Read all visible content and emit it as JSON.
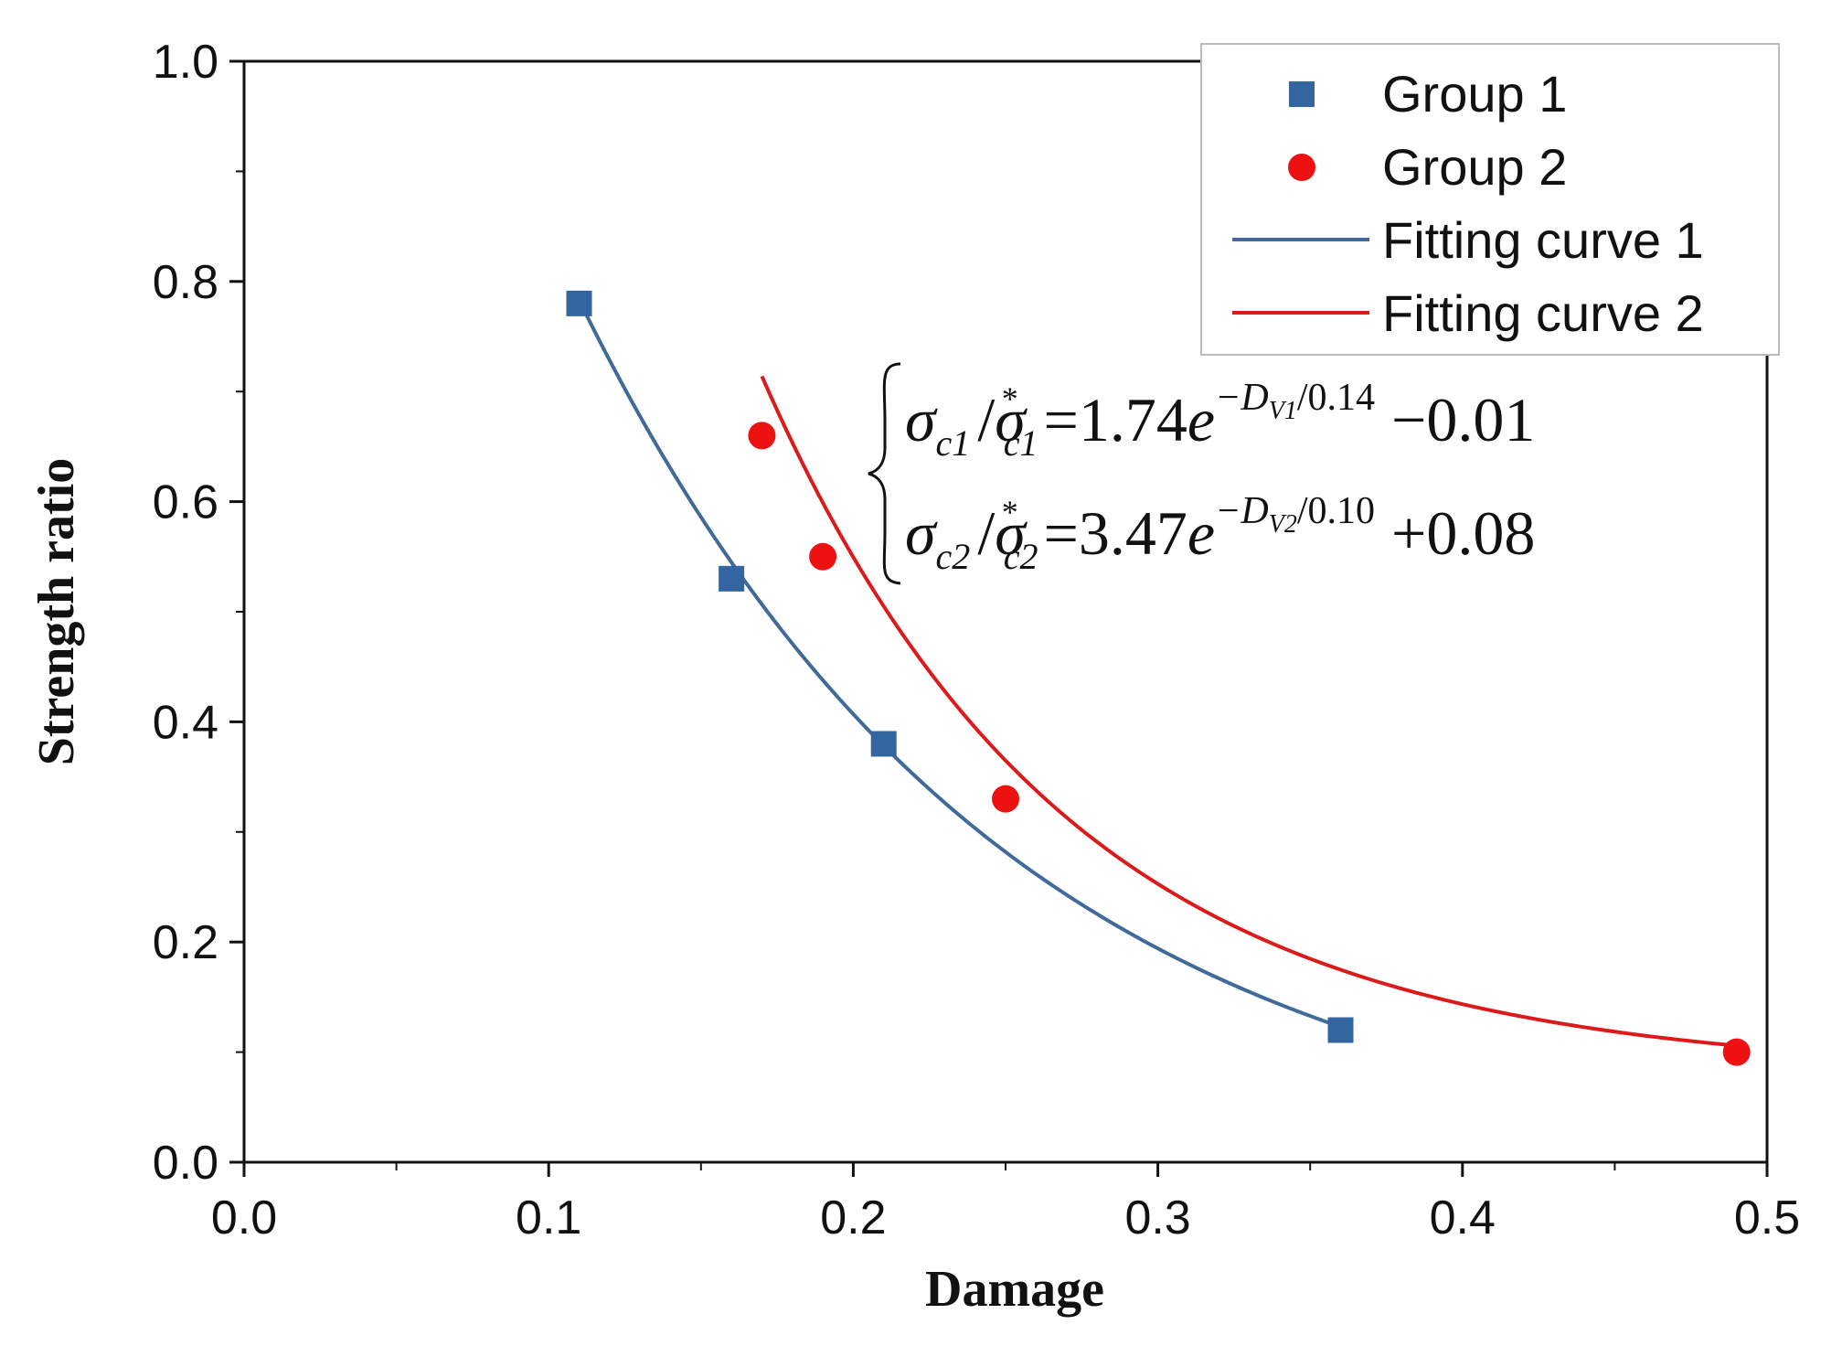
{
  "chart_data": {
    "type": "scatter",
    "title": "",
    "xlabel": "Damage",
    "ylabel": "Strength ratio",
    "xlim": [
      0.0,
      0.5
    ],
    "ylim": [
      0.0,
      1.0
    ],
    "x_ticks": [
      0.0,
      0.1,
      0.2,
      0.3,
      0.4,
      0.5
    ],
    "x_tick_labels": [
      "0.0",
      "0.1",
      "0.2",
      "0.3",
      "0.4",
      "0.5"
    ],
    "y_ticks": [
      0.0,
      0.2,
      0.4,
      0.6,
      0.8,
      1.0
    ],
    "y_tick_labels": [
      "0.0",
      "0.2",
      "0.4",
      "0.6",
      "0.8",
      "1.0"
    ],
    "grid": false,
    "legend_position": "top-right",
    "series": [
      {
        "name": "Group 1",
        "kind": "scatter",
        "marker": "square",
        "color": "#3366a0",
        "x": [
          0.11,
          0.16,
          0.21,
          0.36
        ],
        "y": [
          0.78,
          0.53,
          0.38,
          0.12
        ]
      },
      {
        "name": "Group 2",
        "kind": "scatter",
        "marker": "circle",
        "color": "#ee1111",
        "x": [
          0.17,
          0.19,
          0.25,
          0.49
        ],
        "y": [
          0.66,
          0.55,
          0.33,
          0.1
        ]
      },
      {
        "name": "Fitting curve 1",
        "kind": "line",
        "color": "#3f6a99",
        "model": "exp_decay",
        "A": 1.74,
        "t": 0.14,
        "y0": -0.01,
        "x_range": [
          0.11,
          0.36
        ]
      },
      {
        "name": "Fitting curve 2",
        "kind": "line",
        "color": "#dd1a1a",
        "model": "exp_decay",
        "A": 3.47,
        "t": 0.1,
        "y0": 0.08,
        "x_range": [
          0.17,
          0.49
        ]
      }
    ],
    "annotations": {
      "eq1": {
        "sigma": "σ",
        "sub1": "c1",
        "slash": "/",
        "star": "*",
        "equals_coef": "=1.74",
        "e": "e",
        "exp_minus_D": "−D",
        "exp_sub": "V1",
        "exp_tail": "/0.14",
        "constant": "−0.01"
      },
      "eq2": {
        "sigma": "σ",
        "sub1": "c2",
        "slash": "/",
        "star": "*",
        "equals_coef": "=3.47",
        "e": "e",
        "exp_minus_D": "−D",
        "exp_sub": "V2",
        "exp_tail": "/0.10",
        "constant": "+0.08"
      }
    }
  }
}
